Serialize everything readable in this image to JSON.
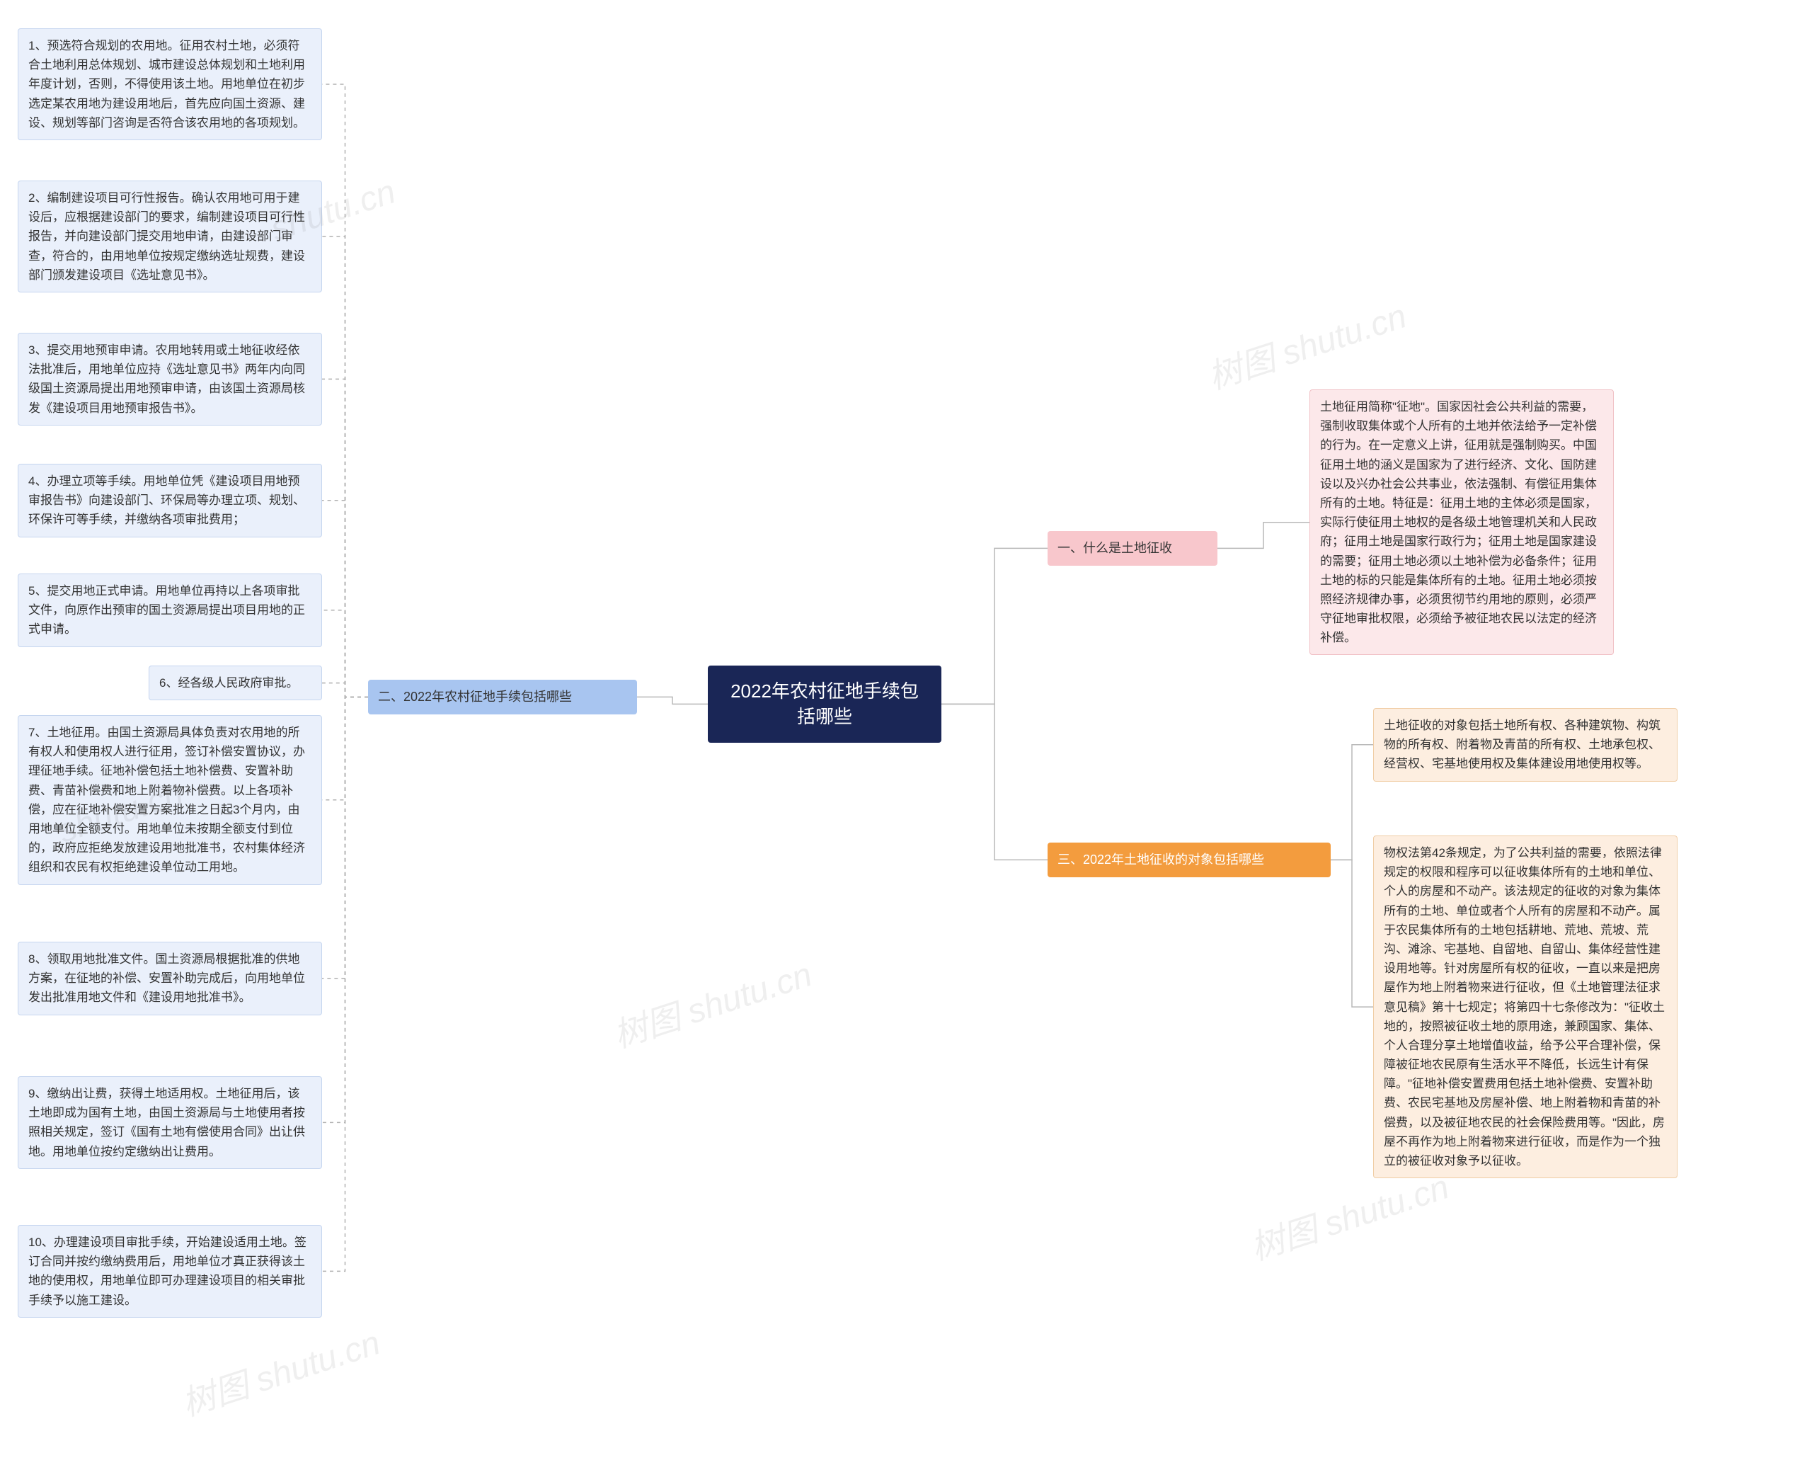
{
  "colors": {
    "center_bg": "#1a2656",
    "center_fg": "#ffffff",
    "branch1_bg": "#f8c7cc",
    "branch2_bg": "#a8c5f0",
    "branch3_bg": "#f39c3e",
    "leaf_blue_bg": "#eaf0fb",
    "leaf_blue_border": "#c5d5ef",
    "leaf_pink_bg": "#fce8ea",
    "leaf_pink_border": "#f0c0c5",
    "leaf_orange_bg": "#fdeee0",
    "leaf_orange_border": "#f0cda5",
    "connector": "#b8b8b8",
    "connector_dashed": "#b0b0b0",
    "page_bg": "#ffffff",
    "text": "#333333",
    "watermark": "rgba(120,120,120,0.12)"
  },
  "typography": {
    "center_fontsize": 26,
    "branch_fontsize": 18,
    "leaf_fontsize": 17,
    "watermark_fontsize": 48,
    "line_height": 1.6
  },
  "center": {
    "label": "2022年农村征地手续包括哪些"
  },
  "branch1": {
    "label": "一、什么是土地征收",
    "leaf": "土地征用简称\"征地\"。国家因社会公共利益的需要，强制收取集体或个人所有的土地并依法给予一定补偿的行为。在一定意义上讲，征用就是强制购买。中国征用土地的涵义是国家为了进行经济、文化、国防建设以及兴办社会公共事业，依法强制、有偿征用集体所有的土地。特征是：征用土地的主体必须是国家，实际行使征用土地权的是各级土地管理机关和人民政府；征用土地是国家行政行为；征用土地是国家建设的需要；征用土地必须以土地补偿为必备条件；征用土地的标的只能是集体所有的土地。征用土地必须按照经济规律办事，必须贯彻节约用地的原则，必须严守征地审批权限，必须给予被征地农民以法定的经济补偿。"
  },
  "branch2": {
    "label": "二、2022年农村征地手续包括哪些",
    "leaves": [
      "1、预选符合规划的农用地。征用农村土地，必须符合土地利用总体规划、城市建设总体规划和土地利用年度计划，否则，不得使用该土地。用地单位在初步选定某农用地为建设用地后，首先应向国土资源、建设、规划等部门咨询是否符合该农用地的各项规划。",
      "2、编制建设项目可行性报告。确认农用地可用于建设后，应根据建设部门的要求，编制建设项目可行性报告，并向建设部门提交用地申请，由建设部门审查，符合的，由用地单位按规定缴纳选址规费，建设部门颁发建设项目《选址意见书》。",
      "3、提交用地预审申请。农用地转用或土地征收经依法批准后，用地单位应持《选址意见书》两年内向同级国土资源局提出用地预审申请，由该国土资源局核发《建设项目用地预审报告书》。",
      "4、办理立项等手续。用地单位凭《建设项目用地预审报告书》向建设部门、环保局等办理立项、规划、环保许可等手续，并缴纳各项审批费用；",
      "5、提交用地正式申请。用地单位再持以上各项审批文件，向原作出预审的国土资源局提出项目用地的正式申请。",
      "6、经各级人民政府审批。",
      "7、土地征用。由国土资源局具体负责对农用地的所有权人和使用权人进行征用，签订补偿安置协议，办理征地手续。征地补偿包括土地补偿费、安置补助费、青苗补偿费和地上附着物补偿费。以上各项补偿，应在征地补偿安置方案批准之日起3个月内，由用地单位全额支付。用地单位未按期全额支付到位的，政府应拒绝发放建设用地批准书，农村集体经济组织和农民有权拒绝建设单位动工用地。",
      "8、领取用地批准文件。国土资源局根据批准的供地方案，在征地的补偿、安置补助完成后，向用地单位发出批准用地文件和《建设用地批准书》。",
      "9、缴纳出让费，获得土地适用权。土地征用后，该土地即成为国有土地，由国土资源局与土地使用者按照相关规定，签订《国有土地有偿使用合同》出让供地。用地单位按约定缴纳出让费用。",
      "10、办理建设项目审批手续，开始建设适用土地。签订合同并按约缴纳费用后，用地单位才真正获得该土地的使用权，用地单位即可办理建设项目的相关审批手续予以施工建设。"
    ]
  },
  "branch3": {
    "label": "三、2022年土地征收的对象包括哪些",
    "leaves": [
      "土地征收的对象包括土地所有权、各种建筑物、构筑物的所有权、附着物及青苗的所有权、土地承包权、经营权、宅基地使用权及集体建设用地使用权等。",
      "物权法第42条规定，为了公共利益的需要，依照法律规定的权限和程序可以征收集体所有的土地和单位、个人的房屋和不动产。该法规定的征收的对象为集体所有的土地、单位或者个人所有的房屋和不动产。属于农民集体所有的土地包括耕地、荒地、荒坡、荒沟、滩涂、宅基地、自留地、自留山、集体经营性建设用地等。针对房屋所有权的征收，一直以来是把房屋作为地上附着物来进行征收，但《土地管理法征求意见稿》第十七规定；将第四十七条修改为：\"征收土地的，按照被征收土地的原用途，兼顾国家、集体、个人合理分享土地增值收益，给予公平合理补偿，保障被征地农民原有生活水平不降低，长远生计有保障。\"征地补偿安置费用包括土地补偿费、安置补助费、农民宅基地及房屋补偿、地上附着物和青苗的补偿费，以及被征地农民的社会保险费用等。\"因此，房屋不再作为地上附着物来进行征收，而是作为一个独立的被征收对象予以征收。"
    ]
  },
  "watermark_text": "树图 shutu.cn",
  "watermark_short": "shutu.cn"
}
